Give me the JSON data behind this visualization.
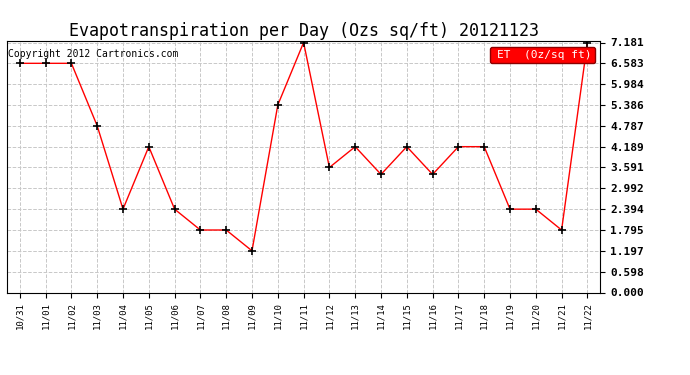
{
  "title": "Evapotranspiration per Day (Ozs sq/ft) 20121123",
  "copyright_text": "Copyright 2012 Cartronics.com",
  "legend_label": "ET  (0z/sq ft)",
  "x_labels": [
    "10/31",
    "11/01",
    "11/02",
    "11/03",
    "11/04",
    "11/05",
    "11/06",
    "11/07",
    "11/08",
    "11/09",
    "11/10",
    "11/11",
    "11/12",
    "11/13",
    "11/14",
    "11/15",
    "11/16",
    "11/17",
    "11/18",
    "11/19",
    "11/20",
    "11/21",
    "11/22"
  ],
  "y_values": [
    6.583,
    6.583,
    6.583,
    4.787,
    2.394,
    4.189,
    2.394,
    1.795,
    1.795,
    1.197,
    5.386,
    7.181,
    3.591,
    4.189,
    3.392,
    4.189,
    3.392,
    4.189,
    4.189,
    2.394,
    2.394,
    1.795,
    7.181
  ],
  "y_ticks": [
    0.0,
    0.598,
    1.197,
    1.795,
    2.394,
    2.992,
    3.591,
    4.189,
    4.787,
    5.386,
    5.984,
    6.583,
    7.181
  ],
  "ylim_min": 0.0,
  "ylim_max": 7.181,
  "line_color": "red",
  "marker_color": "black",
  "marker": "+",
  "bg_color": "#ffffff",
  "grid_color": "#c8c8c8",
  "title_fontsize": 12,
  "copyright_fontsize": 7,
  "xtick_fontsize": 6.5,
  "ytick_fontsize": 8,
  "legend_bg": "red",
  "legend_text_color": "white",
  "legend_fontsize": 8
}
